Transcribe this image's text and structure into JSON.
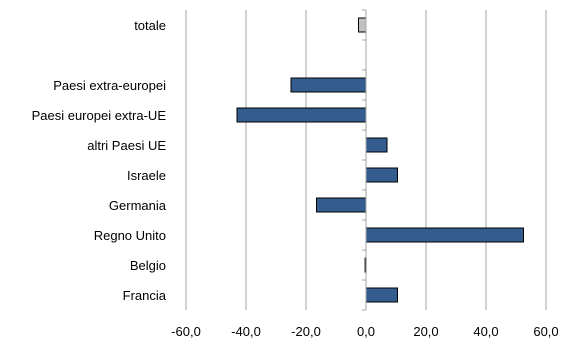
{
  "chart_data": {
    "type": "bar",
    "orientation": "horizontal",
    "categories": [
      "totale",
      "",
      "Paesi extra-europei",
      "Paesi europei extra-UE",
      "altri Paesi UE",
      "Israele",
      "Germania",
      "Regno Unito",
      "Belgio",
      "Francia"
    ],
    "values": [
      -2.5,
      null,
      -25.0,
      -43.0,
      7.0,
      10.5,
      -16.5,
      52.5,
      -0.3,
      10.5
    ],
    "xlim": [
      -60,
      60
    ],
    "xticks": [
      "-60,0",
      "-40,0",
      "-20,0",
      "0,0",
      "20,0",
      "40,0",
      "60,0"
    ],
    "xtick_values": [
      -60,
      -40,
      -20,
      0,
      20,
      40,
      60
    ],
    "grid": "vertical",
    "colors": {
      "bar": "#355C8F",
      "total_bar": "#C0C0C0",
      "border": "#000000",
      "grid": "#A6A6A6"
    },
    "title": "",
    "xlabel": "",
    "ylabel": ""
  }
}
